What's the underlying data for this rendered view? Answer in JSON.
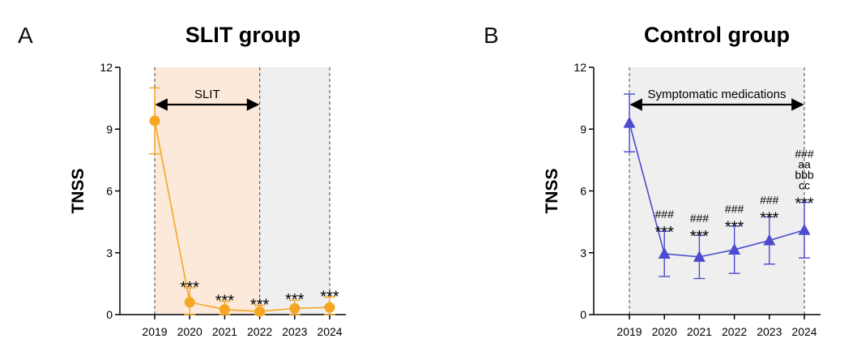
{
  "chart_data": [
    {
      "type": "line",
      "panel": "A",
      "title": "SLIT group",
      "xlabel": "",
      "ylabel": "TNSS",
      "categories": [
        "2019",
        "2020",
        "2021",
        "2022",
        "2023",
        "2024"
      ],
      "ylim": [
        0,
        12
      ],
      "yticks": [
        0,
        3,
        6,
        9,
        12
      ],
      "grid": false,
      "series": [
        {
          "marker": "circle",
          "color": "#f5a623",
          "values": [
            9.4,
            0.6,
            0.25,
            0.15,
            0.3,
            0.35
          ],
          "error": [
            1.6,
            0.7,
            0.4,
            0.3,
            0.4,
            0.5
          ]
        }
      ],
      "annotations": [
        "",
        "***",
        "***",
        "***",
        "***",
        "***"
      ],
      "shaded_regions": [
        {
          "from": "2019",
          "to": "2022",
          "color": "#fde9d9"
        },
        {
          "from": "2022",
          "to": "2024",
          "color": "#efefef"
        }
      ],
      "span_label": {
        "from": "2019",
        "to": "2022",
        "text": "SLIT"
      }
    },
    {
      "type": "line",
      "panel": "B",
      "title": "Control group",
      "xlabel": "",
      "ylabel": "TNSS",
      "categories": [
        "2019",
        "2020",
        "2021",
        "2022",
        "2023",
        "2024"
      ],
      "ylim": [
        0,
        12
      ],
      "yticks": [
        0,
        3,
        6,
        9,
        12
      ],
      "grid": false,
      "series": [
        {
          "marker": "triangle",
          "color": "#4c4ccf",
          "values": [
            9.3,
            2.95,
            2.8,
            3.15,
            3.6,
            4.1
          ],
          "error": [
            1.4,
            1.1,
            1.05,
            1.15,
            1.15,
            1.35
          ]
        }
      ],
      "annotations": [
        [],
        [
          "###",
          "***"
        ],
        [
          "###",
          "***"
        ],
        [
          "###",
          "***"
        ],
        [
          "###",
          "***"
        ],
        [
          "###",
          "aa",
          "bbb",
          "cc",
          "***"
        ]
      ],
      "shaded_regions": [
        {
          "from": "2019",
          "to": "2024",
          "color": "#efefef"
        }
      ],
      "span_label": {
        "from": "2019",
        "to": "2024",
        "text": "Symptomatic medications"
      }
    }
  ]
}
